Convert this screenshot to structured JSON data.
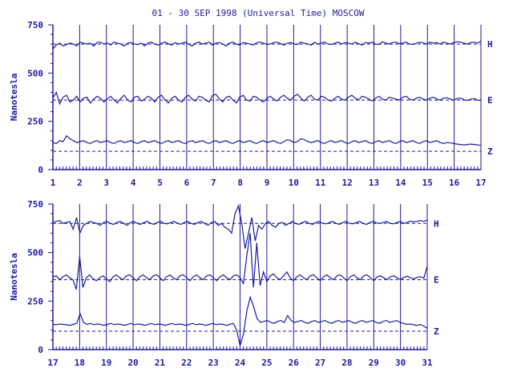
{
  "chart_data": [
    {
      "type": "line",
      "title": "01 - 30 SEP 1998 (Universal Time) MOSCOW",
      "ylabel": "Nanotesla",
      "x_ticks": [
        "1",
        "2",
        "3",
        "4",
        "5",
        "6",
        "7",
        "8",
        "9",
        "10",
        "11",
        "12",
        "13",
        "14",
        "15",
        "16",
        "17"
      ],
      "xlim": [
        1,
        17
      ],
      "ylim": [
        0,
        750
      ],
      "y_ticks": [
        "0",
        "250",
        "500",
        "750"
      ],
      "series": [
        {
          "name": "H",
          "baseline": 650,
          "values": [
            625,
            645,
            655,
            640,
            648,
            655,
            650,
            640,
            660,
            655,
            650,
            655,
            640,
            658,
            660,
            650,
            655,
            645,
            660,
            655,
            650,
            640,
            655,
            658,
            650,
            648,
            655,
            640,
            655,
            660,
            650,
            645,
            655,
            660,
            652,
            645,
            658,
            650,
            655,
            660,
            650,
            640,
            655,
            660,
            650,
            655,
            660,
            645,
            655,
            658,
            650,
            640,
            655,
            660,
            650,
            645,
            658,
            655,
            650,
            645,
            658,
            660,
            655,
            648,
            650,
            658,
            660,
            652,
            645,
            655,
            658,
            650,
            648,
            660,
            655,
            650,
            645,
            660,
            650,
            655,
            660,
            650,
            648,
            655,
            660,
            650,
            658,
            655,
            650,
            660,
            652,
            645,
            658,
            655,
            660,
            650,
            648,
            662,
            655,
            650,
            658,
            660,
            652,
            655,
            660,
            650,
            648,
            655,
            660,
            656,
            650,
            660,
            655,
            658,
            650,
            660,
            655,
            650,
            658,
            662,
            660,
            655,
            650,
            658,
            660,
            655,
            665
          ]
        },
        {
          "name": "E",
          "baseline": 360,
          "values": [
            370,
            400,
            340,
            375,
            385,
            350,
            360,
            380,
            350,
            370,
            375,
            345,
            365,
            380,
            370,
            350,
            365,
            380,
            360,
            345,
            370,
            385,
            360,
            350,
            375,
            380,
            355,
            365,
            380,
            370,
            350,
            375,
            385,
            360,
            345,
            370,
            380,
            360,
            350,
            375,
            385,
            365,
            355,
            380,
            375,
            360,
            350,
            385,
            390,
            365,
            350,
            375,
            380,
            360,
            345,
            375,
            385,
            360,
            355,
            380,
            375,
            360,
            350,
            370,
            380,
            365,
            355,
            375,
            385,
            370,
            360,
            380,
            390,
            370,
            355,
            375,
            385,
            365,
            360,
            380,
            375,
            360,
            355,
            370,
            380,
            365,
            360,
            375,
            385,
            370,
            360,
            380,
            375,
            365,
            355,
            370,
            380,
            365,
            360,
            375,
            370,
            365,
            360,
            375,
            380,
            365,
            360,
            370,
            375,
            365,
            360,
            370,
            375,
            365,
            360,
            370,
            372,
            365,
            360,
            368,
            370,
            362,
            358,
            365,
            368,
            360,
            358
          ]
        },
        {
          "name": "Z",
          "baseline": 95,
          "values": [
            140,
            135,
            150,
            145,
            175,
            160,
            150,
            140,
            145,
            150,
            140,
            135,
            145,
            150,
            140,
            145,
            150,
            140,
            135,
            145,
            150,
            140,
            145,
            150,
            140,
            135,
            145,
            150,
            140,
            145,
            150,
            140,
            135,
            145,
            150,
            140,
            145,
            150,
            140,
            135,
            145,
            150,
            140,
            145,
            150,
            140,
            135,
            145,
            150,
            140,
            145,
            150,
            140,
            135,
            145,
            150,
            140,
            145,
            150,
            140,
            135,
            145,
            150,
            140,
            145,
            150,
            140,
            135,
            145,
            155,
            150,
            140,
            145,
            160,
            155,
            145,
            140,
            145,
            150,
            140,
            135,
            145,
            150,
            140,
            145,
            150,
            140,
            135,
            145,
            150,
            140,
            145,
            150,
            140,
            135,
            145,
            150,
            140,
            145,
            150,
            140,
            135,
            145,
            150,
            140,
            145,
            150,
            140,
            135,
            145,
            150,
            140,
            145,
            150,
            140,
            135,
            140,
            138,
            135,
            132,
            130,
            128,
            130,
            132,
            130,
            128,
            125
          ]
        }
      ],
      "series_labels": [
        "H",
        "E",
        "Z"
      ],
      "grid": "vertical lines at each day"
    },
    {
      "type": "line",
      "ylabel": "Nanotesla",
      "x_ticks": [
        "17",
        "18",
        "19",
        "20",
        "21",
        "22",
        "23",
        "24",
        "25",
        "26",
        "27",
        "28",
        "29",
        "30",
        "31"
      ],
      "xlim": [
        17,
        31
      ],
      "ylim": [
        0,
        750
      ],
      "y_ticks": [
        "0",
        "250",
        "500",
        "750"
      ],
      "series": [
        {
          "name": "H",
          "baseline": 650,
          "values": [
            655,
            660,
            665,
            650,
            655,
            660,
            620,
            680,
            600,
            640,
            650,
            660,
            655,
            650,
            640,
            655,
            660,
            650,
            645,
            655,
            660,
            650,
            640,
            655,
            660,
            650,
            645,
            655,
            660,
            650,
            645,
            655,
            660,
            650,
            648,
            655,
            660,
            650,
            645,
            655,
            660,
            650,
            645,
            655,
            660,
            650,
            640,
            655,
            660,
            640,
            650,
            630,
            620,
            600,
            700,
            740,
            650,
            520,
            600,
            680,
            560,
            640,
            620,
            650,
            660,
            640,
            630,
            650,
            655,
            640,
            650,
            660,
            650,
            645,
            655,
            660,
            650,
            645,
            655,
            660,
            650,
            648,
            655,
            660,
            650,
            645,
            655,
            660,
            650,
            648,
            655,
            660,
            650,
            645,
            655,
            660,
            652,
            650,
            655,
            660,
            650,
            648,
            655,
            660,
            650,
            655,
            662,
            658,
            660,
            665,
            660,
            668
          ]
        },
        {
          "name": "E",
          "baseline": 360,
          "values": [
            375,
            380,
            360,
            375,
            385,
            370,
            360,
            310,
            480,
            320,
            370,
            385,
            365,
            355,
            370,
            380,
            365,
            350,
            375,
            385,
            370,
            360,
            380,
            385,
            370,
            355,
            375,
            385,
            370,
            360,
            380,
            385,
            370,
            355,
            375,
            385,
            370,
            360,
            380,
            385,
            370,
            355,
            375,
            385,
            370,
            360,
            380,
            385,
            370,
            355,
            375,
            385,
            370,
            360,
            380,
            385,
            370,
            340,
            480,
            600,
            320,
            550,
            330,
            400,
            350,
            380,
            390,
            370,
            360,
            380,
            400,
            370,
            355,
            375,
            385,
            370,
            360,
            380,
            385,
            370,
            355,
            375,
            385,
            370,
            360,
            380,
            385,
            370,
            355,
            375,
            385,
            370,
            360,
            380,
            385,
            370,
            355,
            375,
            380,
            370,
            360,
            375,
            380,
            370,
            360,
            372,
            378,
            370,
            365,
            372,
            375,
            368,
            430
          ]
        },
        {
          "name": "Z",
          "baseline": 95,
          "values": [
            130,
            128,
            132,
            130,
            128,
            125,
            130,
            135,
            185,
            140,
            130,
            135,
            128,
            132,
            130,
            125,
            130,
            135,
            128,
            132,
            130,
            125,
            130,
            135,
            128,
            132,
            130,
            125,
            130,
            135,
            128,
            132,
            130,
            125,
            130,
            135,
            128,
            132,
            130,
            125,
            130,
            135,
            128,
            132,
            130,
            125,
            130,
            135,
            128,
            132,
            130,
            125,
            130,
            135,
            100,
            20,
            80,
            200,
            270,
            220,
            160,
            140,
            145,
            150,
            140,
            135,
            145,
            150,
            140,
            175,
            150,
            140,
            145,
            150,
            140,
            135,
            145,
            150,
            140,
            145,
            150,
            140,
            135,
            145,
            150,
            140,
            145,
            150,
            140,
            135,
            145,
            150,
            140,
            145,
            150,
            140,
            135,
            145,
            150,
            140,
            145,
            150,
            140,
            135,
            130,
            132,
            128,
            125,
            130,
            120,
            110
          ]
        }
      ],
      "series_labels": [
        "H",
        "E",
        "Z"
      ],
      "grid": "vertical lines at each day"
    }
  ],
  "colors": {
    "ink": "#1b1b9e"
  }
}
